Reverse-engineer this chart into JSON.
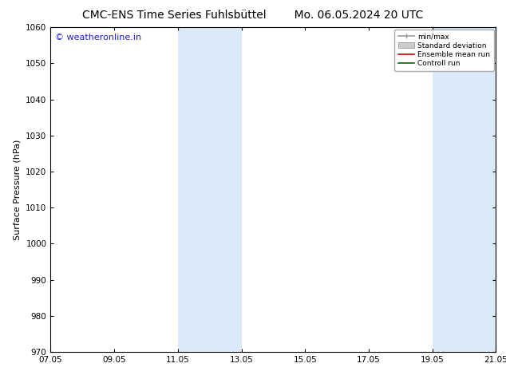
{
  "title_left": "CMC-ENS Time Series Fuhlsbüttel",
  "title_right": "Mo. 06.05.2024 20 UTC",
  "ylabel": "Surface Pressure (hPa)",
  "ylim": [
    970,
    1060
  ],
  "yticks": [
    970,
    980,
    990,
    1000,
    1010,
    1020,
    1030,
    1040,
    1050,
    1060
  ],
  "xticks_labels": [
    "07.05",
    "09.05",
    "11.05",
    "13.05",
    "15.05",
    "17.05",
    "19.05",
    "21.05"
  ],
  "xtick_positions": [
    0,
    2,
    4,
    6,
    8,
    10,
    12,
    14
  ],
  "xlim": [
    0,
    14
  ],
  "shaded_bands": [
    {
      "x_start": 4.0,
      "x_end": 4.667,
      "color": "#daeaf8"
    },
    {
      "x_start": 4.667,
      "x_end": 6.0,
      "color": "#daeaf8"
    },
    {
      "x_start": 12.0,
      "x_end": 12.667,
      "color": "#daeaf8"
    },
    {
      "x_start": 12.667,
      "x_end": 14.0,
      "color": "#daeaf8"
    }
  ],
  "watermark_text": "© weatheronline.in",
  "watermark_color": "#2222cc",
  "legend_entries": [
    {
      "label": "min/max",
      "type": "errbar",
      "color": "#999999"
    },
    {
      "label": "Standard deviation",
      "type": "patch",
      "color": "#cccccc"
    },
    {
      "label": "Ensemble mean run",
      "type": "line",
      "color": "#cc0000"
    },
    {
      "label": "Controll run",
      "type": "line",
      "color": "#006600"
    }
  ],
  "background_color": "#ffffff",
  "title_fontsize": 10,
  "label_fontsize": 8,
  "tick_fontsize": 7.5,
  "watermark_fontsize": 8
}
